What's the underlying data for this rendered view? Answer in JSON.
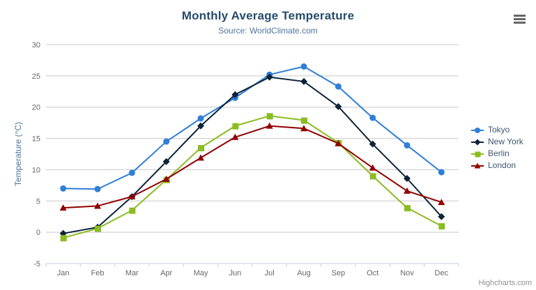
{
  "title": "Monthly Average Temperature",
  "subtitle": "Source: WorldClimate.com",
  "credits": "Highcharts.com",
  "menu_icon": "hamburger-icon",
  "colors": {
    "title": "#274b6d",
    "subtitle": "#4d759e",
    "axis_title": "#4d759e",
    "axis_labels": "#666666",
    "gridline": "#c8c8c8",
    "axis_line": "#c0d0e0",
    "legend_text": "#3e576f",
    "menu_icon": "#666666",
    "credits_text": "#909090"
  },
  "chart_data": {
    "type": "line",
    "title": "Monthly Average Temperature",
    "subtitle": "Source: WorldClimate.com",
    "xlabel": "",
    "ylabel": "Temperature (°C)",
    "ylim": [
      -5,
      30
    ],
    "ytick_step": 5,
    "grid": "horizontal",
    "legend_position": "right",
    "categories": [
      "Jan",
      "Feb",
      "Mar",
      "Apr",
      "May",
      "Jun",
      "Jul",
      "Aug",
      "Sep",
      "Oct",
      "Nov",
      "Dec"
    ],
    "series": [
      {
        "name": "Tokyo",
        "color": "#2f7ed8",
        "marker": "circle",
        "values": [
          7.0,
          6.9,
          9.5,
          14.5,
          18.2,
          21.5,
          25.2,
          26.5,
          23.3,
          18.3,
          13.9,
          9.6
        ]
      },
      {
        "name": "New York",
        "color": "#0d233a",
        "marker": "diamond",
        "values": [
          -0.2,
          0.8,
          5.7,
          11.3,
          17.0,
          22.0,
          24.8,
          24.1,
          20.1,
          14.1,
          8.6,
          2.5
        ]
      },
      {
        "name": "Berlin",
        "color": "#8bbc21",
        "marker": "square",
        "values": [
          -0.9,
          0.6,
          3.5,
          8.4,
          13.5,
          17.0,
          18.6,
          17.9,
          14.3,
          9.0,
          3.9,
          1.0
        ]
      },
      {
        "name": "London",
        "color": "#910000",
        "marker": "triangle",
        "values": [
          3.9,
          4.2,
          5.7,
          8.5,
          11.9,
          15.2,
          17.0,
          16.6,
          14.2,
          10.3,
          6.6,
          4.8
        ]
      }
    ]
  }
}
